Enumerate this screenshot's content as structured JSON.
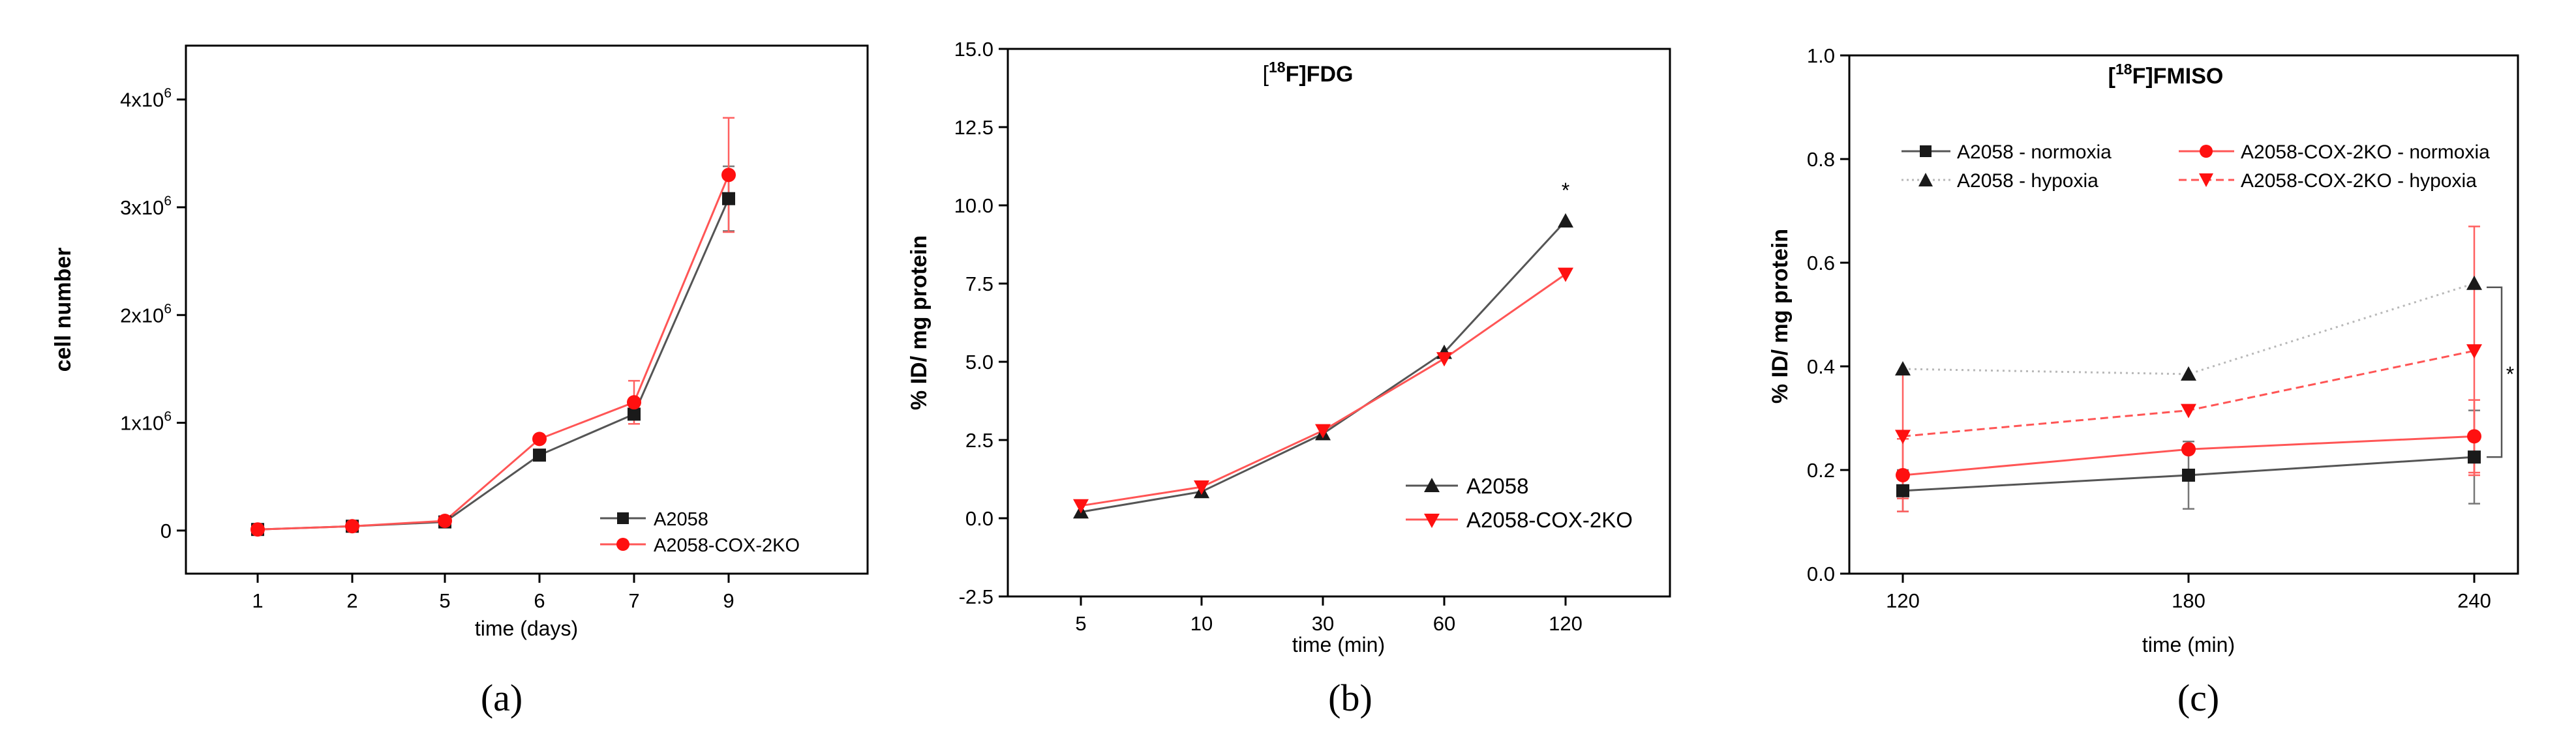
{
  "chart_data": [
    {
      "panel": "(a)",
      "type": "line",
      "title": "",
      "xlabel": "time (days)",
      "ylabel": "cell number",
      "categories": [
        "1",
        "2",
        "5",
        "6",
        "7",
        "9"
      ],
      "ylim": [
        -400000,
        4500000
      ],
      "yticks": [
        {
          "value": 0,
          "label": "0",
          "exp": ""
        },
        {
          "value": 1000000,
          "label": "1x10",
          "exp": "6"
        },
        {
          "value": 2000000,
          "label": "2x10",
          "exp": "6"
        },
        {
          "value": 3000000,
          "label": "3x10",
          "exp": "6"
        },
        {
          "value": 4000000,
          "label": "4x10",
          "exp": "6"
        }
      ],
      "legend_position": "bottom-right",
      "series": [
        {
          "name": "A2058",
          "color": "#1a1a1a",
          "line": "#555555",
          "marker": "square",
          "dash": "solid",
          "values": [
            10000,
            40000,
            80000,
            700000,
            1080000,
            3080000
          ],
          "errors": [
            0,
            0,
            0,
            0,
            0,
            300000
          ]
        },
        {
          "name": "A2058-COX-2KO",
          "color": "#ff1010",
          "line": "#ff5555",
          "marker": "circle",
          "dash": "solid",
          "values": [
            10000,
            40000,
            90000,
            850000,
            1190000,
            3300000
          ],
          "errors": [
            0,
            0,
            0,
            0,
            200000,
            530000
          ]
        }
      ],
      "annotations": []
    },
    {
      "panel": "(b)",
      "type": "line",
      "title": "[18F]FDG",
      "title_parts": [
        "[",
        "18",
        "F]FDG"
      ],
      "xlabel": "time (min)",
      "ylabel": "% ID/ mg protein",
      "categories": [
        "5",
        "10",
        "30",
        "60",
        "120"
      ],
      "ylim": [
        -2.5,
        15.0
      ],
      "yticks": [
        {
          "value": -2.5,
          "label": "-2.5",
          "exp": ""
        },
        {
          "value": 0.0,
          "label": "0.0",
          "exp": ""
        },
        {
          "value": 2.5,
          "label": "2.5",
          "exp": ""
        },
        {
          "value": 5.0,
          "label": "5.0",
          "exp": ""
        },
        {
          "value": 7.5,
          "label": "7.5",
          "exp": ""
        },
        {
          "value": 10.0,
          "label": "10.0",
          "exp": ""
        },
        {
          "value": 12.5,
          "label": "12.5",
          "exp": ""
        },
        {
          "value": 15.0,
          "label": "15.0",
          "exp": ""
        }
      ],
      "legend_position": "bottom-right",
      "series": [
        {
          "name": "A2058",
          "color": "#1a1a1a",
          "line": "#555555",
          "marker": "triangle-up",
          "dash": "solid",
          "values": [
            0.2,
            0.85,
            2.7,
            5.3,
            9.5
          ],
          "errors": [
            0,
            0,
            0,
            0,
            0
          ]
        },
        {
          "name": "A2058-COX-2KO",
          "color": "#ff1010",
          "line": "#ff5555",
          "marker": "triangle-down",
          "dash": "solid",
          "values": [
            0.4,
            1.0,
            2.8,
            5.1,
            7.8
          ],
          "errors": [
            0,
            0,
            0,
            0,
            0
          ]
        }
      ],
      "annotations": [
        {
          "text": "*",
          "category": "120",
          "y": 10.5
        }
      ]
    },
    {
      "panel": "(c)",
      "type": "line",
      "title": "[18F]FMISO",
      "title_parts": [
        "[",
        "18",
        "F]FMISO"
      ],
      "xlabel": "time (min)",
      "ylabel": "% ID/ mg protein",
      "categories": [
        "120",
        "180",
        "240"
      ],
      "ylim": [
        0.0,
        1.0
      ],
      "yticks": [
        {
          "value": 0.0,
          "label": "0.0",
          "exp": ""
        },
        {
          "value": 0.2,
          "label": "0.2",
          "exp": ""
        },
        {
          "value": 0.4,
          "label": "0.4",
          "exp": ""
        },
        {
          "value": 0.6,
          "label": "0.6",
          "exp": ""
        },
        {
          "value": 0.8,
          "label": "0.8",
          "exp": ""
        },
        {
          "value": 1.0,
          "label": "1.0",
          "exp": ""
        }
      ],
      "legend_position": "top",
      "series": [
        {
          "name": "A2058 - normoxia",
          "color": "#1a1a1a",
          "line": "#555555",
          "marker": "square",
          "dash": "solid",
          "values": [
            0.16,
            0.19,
            0.225
          ],
          "errors": [
            0.04,
            0.065,
            0.09
          ]
        },
        {
          "name": "A2058 - hypoxia",
          "color": "#1a1a1a",
          "line": "#b8b8b8",
          "marker": "triangle-up",
          "dash": "dot",
          "values": [
            0.395,
            0.385,
            0.56
          ],
          "errors": [
            0,
            0,
            0
          ]
        },
        {
          "name": "A2058-COX-2KO - normoxia",
          "color": "#ff1010",
          "line": "#ff5555",
          "marker": "circle",
          "dash": "solid",
          "values": [
            0.19,
            0.24,
            0.265
          ],
          "errors": [
            0.07,
            0,
            0.07
          ]
        },
        {
          "name": "A2058-COX-2KO - hypoxia",
          "color": "#ff1010",
          "line": "#ff5555",
          "marker": "triangle-down",
          "dash": "dash",
          "values": [
            0.265,
            0.315,
            0.43
          ],
          "errors": [
            0.12,
            0,
            0.24
          ]
        }
      ],
      "annotations": [
        {
          "text": "*",
          "bracket": [
            0.225,
            0.56
          ]
        }
      ]
    }
  ],
  "captions": [
    "(a)",
    "(b)",
    "(c)"
  ]
}
